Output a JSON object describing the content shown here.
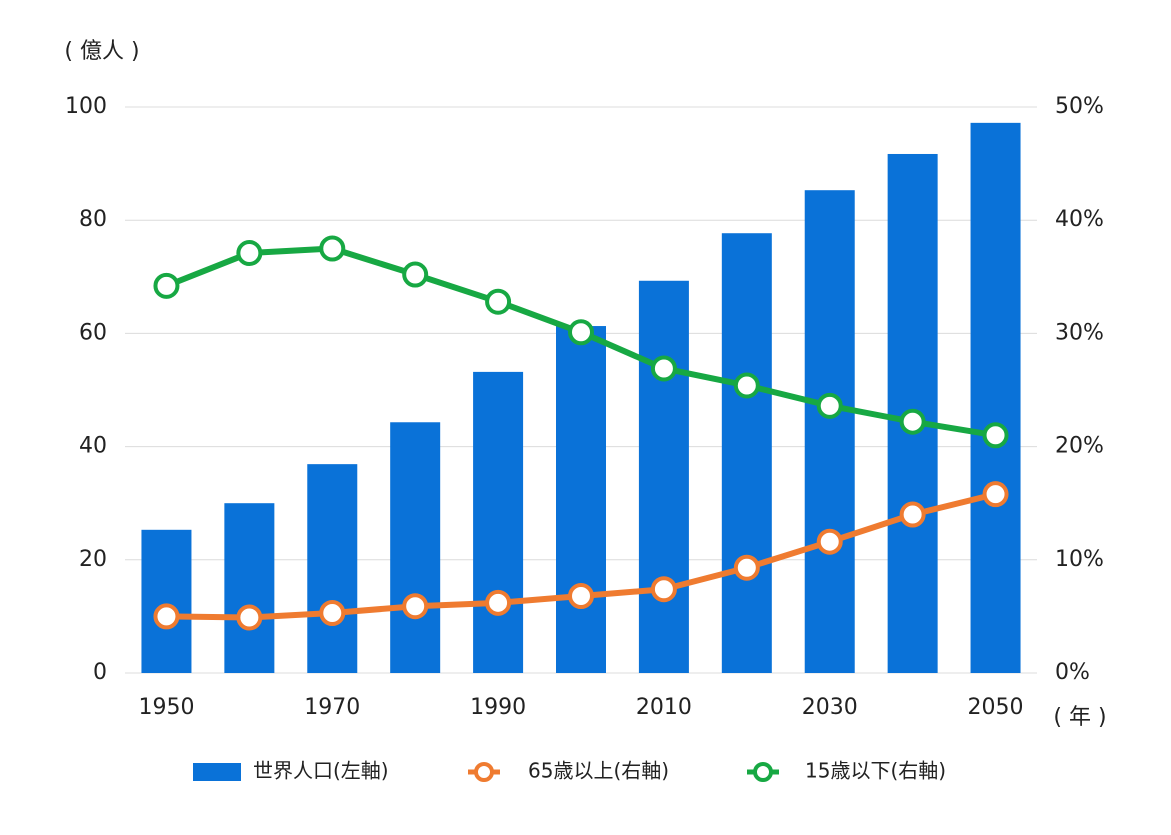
{
  "chart_data": {
    "type": "bar",
    "y_label": "( 億人 )",
    "x_label": "( 年 )",
    "categories": [
      "1950",
      null,
      "1970",
      null,
      "1990",
      null,
      "2010",
      null,
      "2030",
      null,
      "2050"
    ],
    "series": [
      {
        "name": "世界人口(左軸)",
        "type": "bar",
        "color": "#0a72d8",
        "values": [
          25.3,
          30.0,
          36.9,
          44.3,
          53.2,
          61.3,
          69.3,
          77.7,
          85.3,
          91.7,
          97.2
        ]
      },
      {
        "name": "65歳以上(右軸)",
        "type": "line",
        "axis": "y2",
        "color": "#ef7b30",
        "values": [
          5.0,
          4.9,
          5.3,
          5.9,
          6.2,
          6.8,
          7.4,
          9.3,
          11.6,
          14.0,
          15.8
        ]
      },
      {
        "name": "15歳以下(右軸)",
        "type": "line",
        "axis": "y2",
        "color": "#17a843",
        "values": [
          34.2,
          37.1,
          37.5,
          35.2,
          32.8,
          30.1,
          26.9,
          25.4,
          23.6,
          22.2,
          21.0
        ]
      }
    ],
    "ylim": [
      0,
      100
    ],
    "yticks": [
      0,
      20,
      40,
      60,
      80,
      100
    ],
    "y2lim": [
      0,
      50
    ],
    "y2ticks": [
      {
        "value": 0,
        "label": "0%"
      },
      {
        "value": 10,
        "label": "10%"
      },
      {
        "value": 20,
        "label": "20%"
      },
      {
        "value": 30,
        "label": "30%"
      },
      {
        "value": 40,
        "label": "40%"
      },
      {
        "value": 50,
        "label": "50%"
      }
    ],
    "grid": true
  }
}
